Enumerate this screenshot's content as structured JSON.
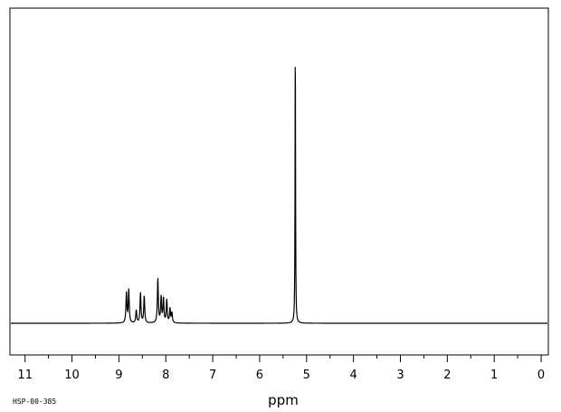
{
  "chart_data": {
    "type": "line",
    "xlabel": "ppm",
    "ylabel": "",
    "xlim": [
      11.2,
      -0.3
    ],
    "x_reversed": true,
    "ticks": [
      {
        "value": 11,
        "label": "11"
      },
      {
        "value": 10,
        "label": "10"
      },
      {
        "value": 9,
        "label": "9"
      },
      {
        "value": 8,
        "label": "8"
      },
      {
        "value": 7,
        "label": "7"
      },
      {
        "value": 6,
        "label": "6"
      },
      {
        "value": 5,
        "label": "5"
      },
      {
        "value": 4,
        "label": "4"
      },
      {
        "value": 3,
        "label": "3"
      },
      {
        "value": 2,
        "label": "2"
      },
      {
        "value": 1,
        "label": "1"
      },
      {
        "value": 0,
        "label": "0"
      }
    ],
    "minor_tick_step": 0.5,
    "ylim": [
      0,
      1
    ],
    "baseline_height": 0.0,
    "peaks": [
      {
        "ppm": 8.84,
        "height": 0.105,
        "width": 0.012
      },
      {
        "ppm": 8.79,
        "height": 0.115,
        "width": 0.012
      },
      {
        "ppm": 8.63,
        "height": 0.045,
        "width": 0.012
      },
      {
        "ppm": 8.54,
        "height": 0.105,
        "width": 0.012
      },
      {
        "ppm": 8.46,
        "height": 0.095,
        "width": 0.012
      },
      {
        "ppm": 8.17,
        "height": 0.155,
        "width": 0.012
      },
      {
        "ppm": 8.1,
        "height": 0.09,
        "width": 0.012
      },
      {
        "ppm": 8.05,
        "height": 0.085,
        "width": 0.012
      },
      {
        "ppm": 7.98,
        "height": 0.08,
        "width": 0.012
      },
      {
        "ppm": 7.91,
        "height": 0.05,
        "width": 0.012
      },
      {
        "ppm": 7.87,
        "height": 0.035,
        "width": 0.012
      },
      {
        "ppm": 5.24,
        "height": 1.0,
        "width": 0.006
      }
    ],
    "grid": false
  },
  "footer": {
    "code": "HSP-00-385"
  }
}
